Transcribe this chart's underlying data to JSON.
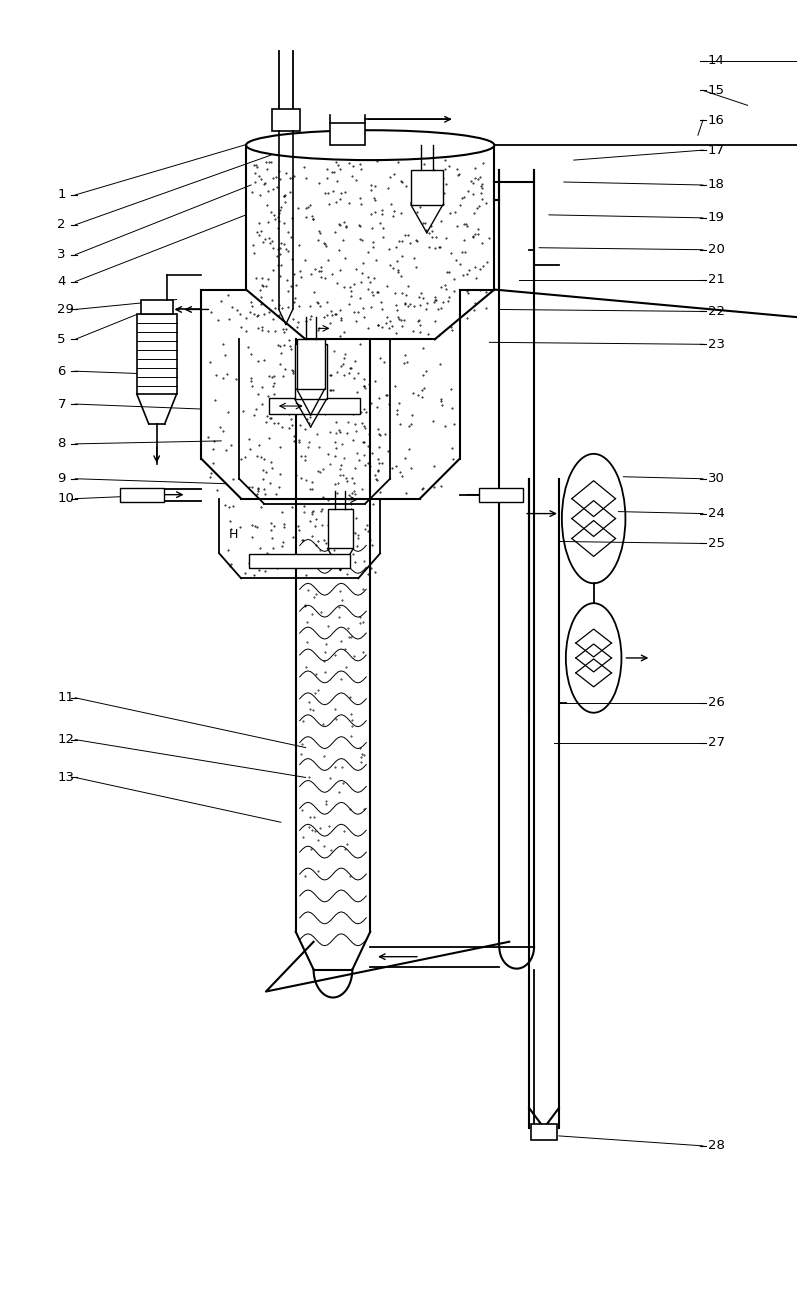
{
  "bg_color": "#ffffff",
  "lc": "#000000",
  "fig_width": 8.0,
  "fig_height": 12.98
}
